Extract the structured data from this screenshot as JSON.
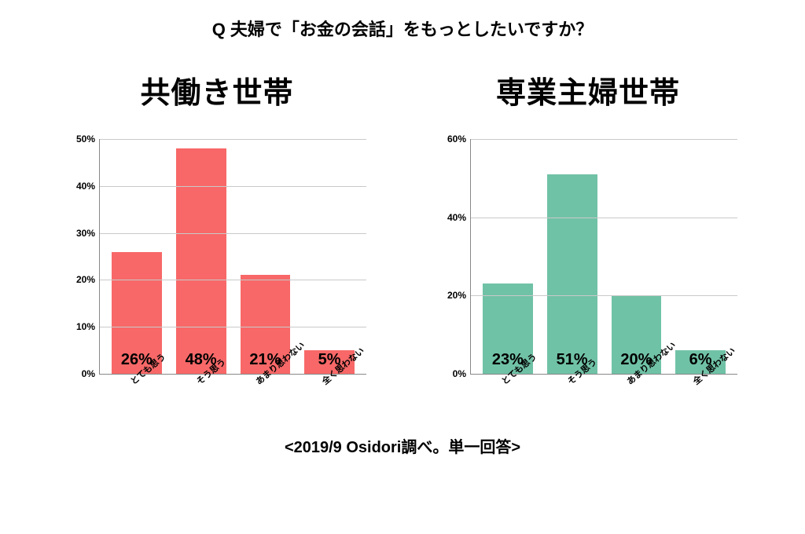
{
  "question": "Q 夫婦で「お金の会話」をもっとしたいですか？",
  "footnote": "<2019/9 Osidori調べ。単一回答>",
  "categories": [
    "とても思う",
    "そう思う",
    "あまり思わない",
    "全く思わない"
  ],
  "panels": [
    {
      "key": "dual",
      "title": "共働き世帯",
      "type": "bar",
      "bar_color": "#f86868",
      "values": [
        26,
        48,
        21,
        5
      ],
      "value_suffix": "%",
      "ylim": [
        0,
        50
      ],
      "ytick_step": 10,
      "ytick_suffix": "%",
      "grid_color": "#c9c9c9",
      "axis_color": "#888888",
      "background_color": "#ffffff",
      "bar_width": 0.78,
      "value_label_fontsize": 20,
      "tick_label_fontsize": 12,
      "category_label_fontsize": 11,
      "category_label_rotation_deg": -40
    },
    {
      "key": "single",
      "title": "専業主婦世帯",
      "type": "bar",
      "bar_color": "#70c2a6",
      "values": [
        23,
        51,
        20,
        6
      ],
      "value_suffix": "%",
      "ylim": [
        0,
        60
      ],
      "ytick_step": 20,
      "ytick_suffix": "%",
      "grid_color": "#c9c9c9",
      "axis_color": "#888888",
      "background_color": "#ffffff",
      "bar_width": 0.78,
      "value_label_fontsize": 20,
      "tick_label_fontsize": 12,
      "category_label_fontsize": 11,
      "category_label_rotation_deg": -40
    }
  ],
  "title_fontsize": 22,
  "panel_title_fontsize": 38,
  "footnote_fontsize": 20,
  "text_color": "#000000"
}
